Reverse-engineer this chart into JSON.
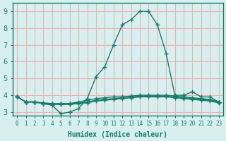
{
  "xlabel": "Humidex (Indice chaleur)",
  "ylabel": "",
  "xlim": [
    -0.5,
    23.5
  ],
  "ylim": [
    2.8,
    9.5
  ],
  "xtick_labels": [
    "0",
    "1",
    "2",
    "3",
    "4",
    "5",
    "6",
    "7",
    "8",
    "9",
    "10",
    "11",
    "12",
    "13",
    "14",
    "15",
    "16",
    "17",
    "18",
    "19",
    "20",
    "21",
    "22",
    "23"
  ],
  "ytick_labels": [
    "3",
    "4",
    "5",
    "6",
    "7",
    "8",
    "9"
  ],
  "bg_color": "#d6f0f0",
  "grid_color": "#f0b0b0",
  "line_color": "#1a7a6a",
  "lines": [
    {
      "x": [
        0,
        1,
        2,
        3,
        4,
        5,
        6,
        7,
        8,
        9,
        10,
        11,
        12,
        13,
        14,
        15,
        16,
        17,
        18,
        19,
        20,
        21,
        22,
        23
      ],
      "y": [
        3.9,
        3.6,
        3.6,
        3.5,
        3.4,
        2.9,
        3.0,
        3.2,
        3.8,
        5.1,
        5.7,
        7.0,
        8.2,
        8.5,
        9.0,
        9.0,
        8.2,
        6.5,
        4.0,
        4.0,
        4.2,
        3.9,
        3.9,
        3.6
      ]
    },
    {
      "x": [
        0,
        1,
        2,
        3,
        4,
        5,
        6,
        7,
        8,
        9,
        10,
        11,
        12,
        13,
        14,
        15,
        16,
        17,
        18,
        19,
        20,
        21,
        22,
        23
      ],
      "y": [
        3.9,
        3.6,
        3.6,
        3.5,
        3.5,
        3.5,
        3.5,
        3.6,
        3.7,
        3.8,
        3.85,
        3.9,
        3.9,
        3.95,
        4.0,
        4.0,
        4.0,
        4.0,
        3.95,
        3.9,
        3.85,
        3.8,
        3.75,
        3.6
      ]
    },
    {
      "x": [
        0,
        1,
        2,
        3,
        4,
        5,
        6,
        7,
        8,
        9,
        10,
        11,
        12,
        13,
        14,
        15,
        16,
        17,
        18,
        19,
        20,
        21,
        22,
        23
      ],
      "y": [
        3.9,
        3.6,
        3.6,
        3.55,
        3.5,
        3.5,
        3.5,
        3.55,
        3.6,
        3.7,
        3.75,
        3.8,
        3.85,
        3.9,
        3.95,
        3.95,
        3.95,
        3.95,
        3.9,
        3.85,
        3.8,
        3.75,
        3.7,
        3.6
      ]
    },
    {
      "x": [
        0,
        1,
        2,
        3,
        4,
        5,
        6,
        7,
        8,
        9,
        10,
        11,
        12,
        13,
        14,
        15,
        16,
        17,
        18,
        19,
        20,
        21,
        22,
        23
      ],
      "y": [
        3.9,
        3.6,
        3.6,
        3.5,
        3.45,
        3.45,
        3.45,
        3.5,
        3.55,
        3.65,
        3.7,
        3.75,
        3.8,
        3.85,
        3.9,
        3.9,
        3.9,
        3.9,
        3.85,
        3.8,
        3.75,
        3.7,
        3.65,
        3.55
      ]
    }
  ]
}
